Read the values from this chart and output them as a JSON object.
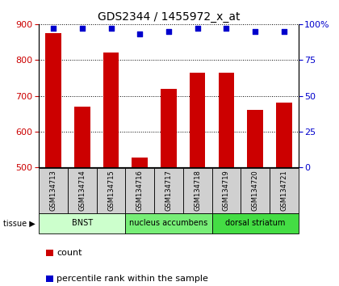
{
  "title": "GDS2344 / 1455972_x_at",
  "samples": [
    "GSM134713",
    "GSM134714",
    "GSM134715",
    "GSM134716",
    "GSM134717",
    "GSM134718",
    "GSM134719",
    "GSM134720",
    "GSM134721"
  ],
  "counts": [
    875,
    670,
    820,
    527,
    720,
    765,
    765,
    660,
    680
  ],
  "percentiles": [
    97,
    97,
    97,
    93,
    95,
    97,
    97,
    95,
    95
  ],
  "ylim_left": [
    500,
    900
  ],
  "ylim_right": [
    0,
    100
  ],
  "yticks_left": [
    500,
    600,
    700,
    800,
    900
  ],
  "yticks_right": [
    0,
    25,
    50,
    75,
    100
  ],
  "bar_color": "#cc0000",
  "dot_color": "#0000cc",
  "groups": [
    {
      "label": "BNST",
      "start": 0,
      "end": 3,
      "color": "#ccffcc"
    },
    {
      "label": "nucleus accumbens",
      "start": 3,
      "end": 6,
      "color": "#77ee77"
    },
    {
      "label": "dorsal striatum",
      "start": 6,
      "end": 9,
      "color": "#44dd44"
    }
  ],
  "group_row_label": "tissue ▶",
  "legend_count_label": "count",
  "legend_pct_label": "percentile rank within the sample",
  "sample_box_color": "#d0d0d0",
  "bar_width": 0.55
}
